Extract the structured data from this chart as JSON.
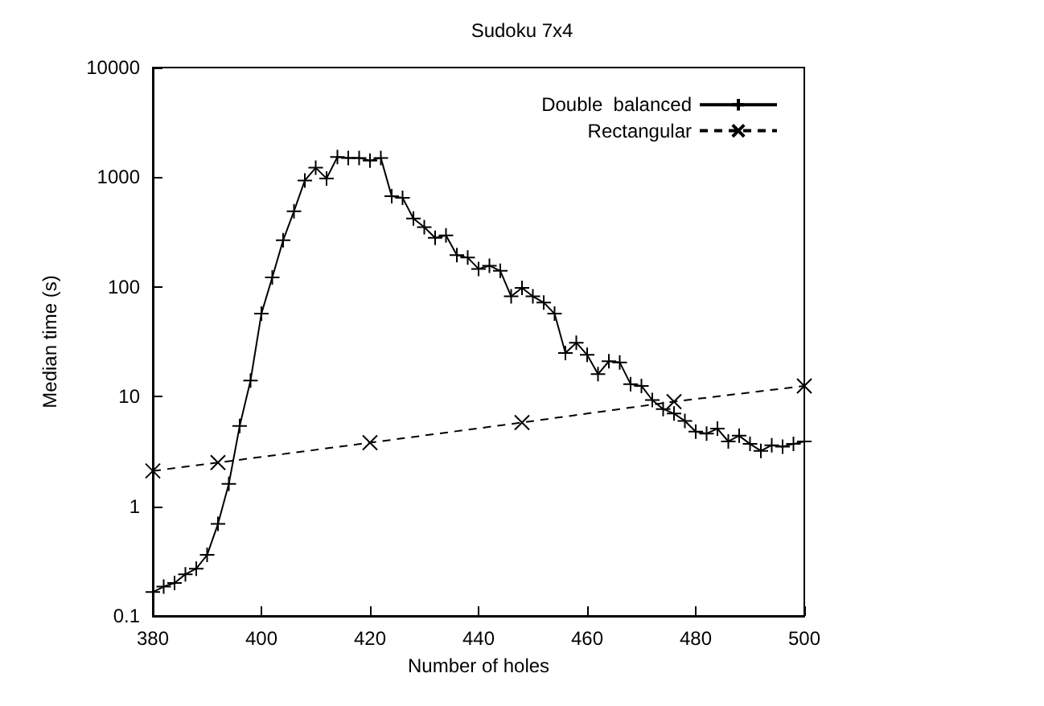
{
  "chart_data": {
    "type": "line",
    "title": "Sudoku 7x4",
    "xlabel": "Number of holes",
    "ylabel": "Median time (s)",
    "log": "y",
    "xlim": [
      380,
      500
    ],
    "xticks": [
      380,
      400,
      420,
      440,
      460,
      480,
      500
    ],
    "ylim": [
      0.1,
      10000
    ],
    "yticks": [
      0.1,
      1,
      10,
      100,
      1000,
      10000
    ],
    "grid": false,
    "legend": "top right",
    "series": [
      {
        "name": "Double  balanced",
        "color": "#000000",
        "marker": "plus",
        "line_style": "solid",
        "x": [
          380,
          382,
          384,
          386,
          388,
          390,
          392,
          394,
          396,
          398,
          400,
          402,
          404,
          406,
          408,
          410,
          412,
          414,
          416,
          418,
          420,
          422,
          424,
          426,
          428,
          430,
          432,
          434,
          436,
          438,
          440,
          442,
          444,
          446,
          448,
          450,
          452,
          454,
          456,
          458,
          460,
          462,
          464,
          466,
          468,
          470,
          472,
          474,
          476,
          478,
          480,
          482,
          484,
          486,
          488,
          490,
          492,
          494,
          496,
          498,
          500
        ],
        "values": [
          0.165,
          0.185,
          0.2,
          0.24,
          0.27,
          0.36,
          0.69,
          1.6,
          5.4,
          14,
          57,
          122,
          266,
          490,
          935,
          1220,
          975,
          1530,
          1500,
          1500,
          1420,
          1500,
          670,
          650,
          420,
          350,
          280,
          295,
          195,
          185,
          146,
          156,
          140,
          82,
          98,
          82,
          72,
          57,
          25,
          31,
          24,
          16,
          21,
          20.5,
          13,
          12.5,
          9.3,
          7.7,
          7,
          6,
          4.8,
          4.6,
          5.1,
          3.9,
          4.4,
          3.7,
          3.2,
          3.6,
          3.5,
          3.7,
          3.9
        ]
      },
      {
        "name": "Rectangular",
        "color": "#000000",
        "marker": "cross",
        "line_style": "dashed",
        "x": [
          380,
          392,
          420,
          448,
          476,
          500
        ],
        "values": [
          2.1,
          2.5,
          3.8,
          5.8,
          9,
          12.5
        ]
      }
    ]
  }
}
